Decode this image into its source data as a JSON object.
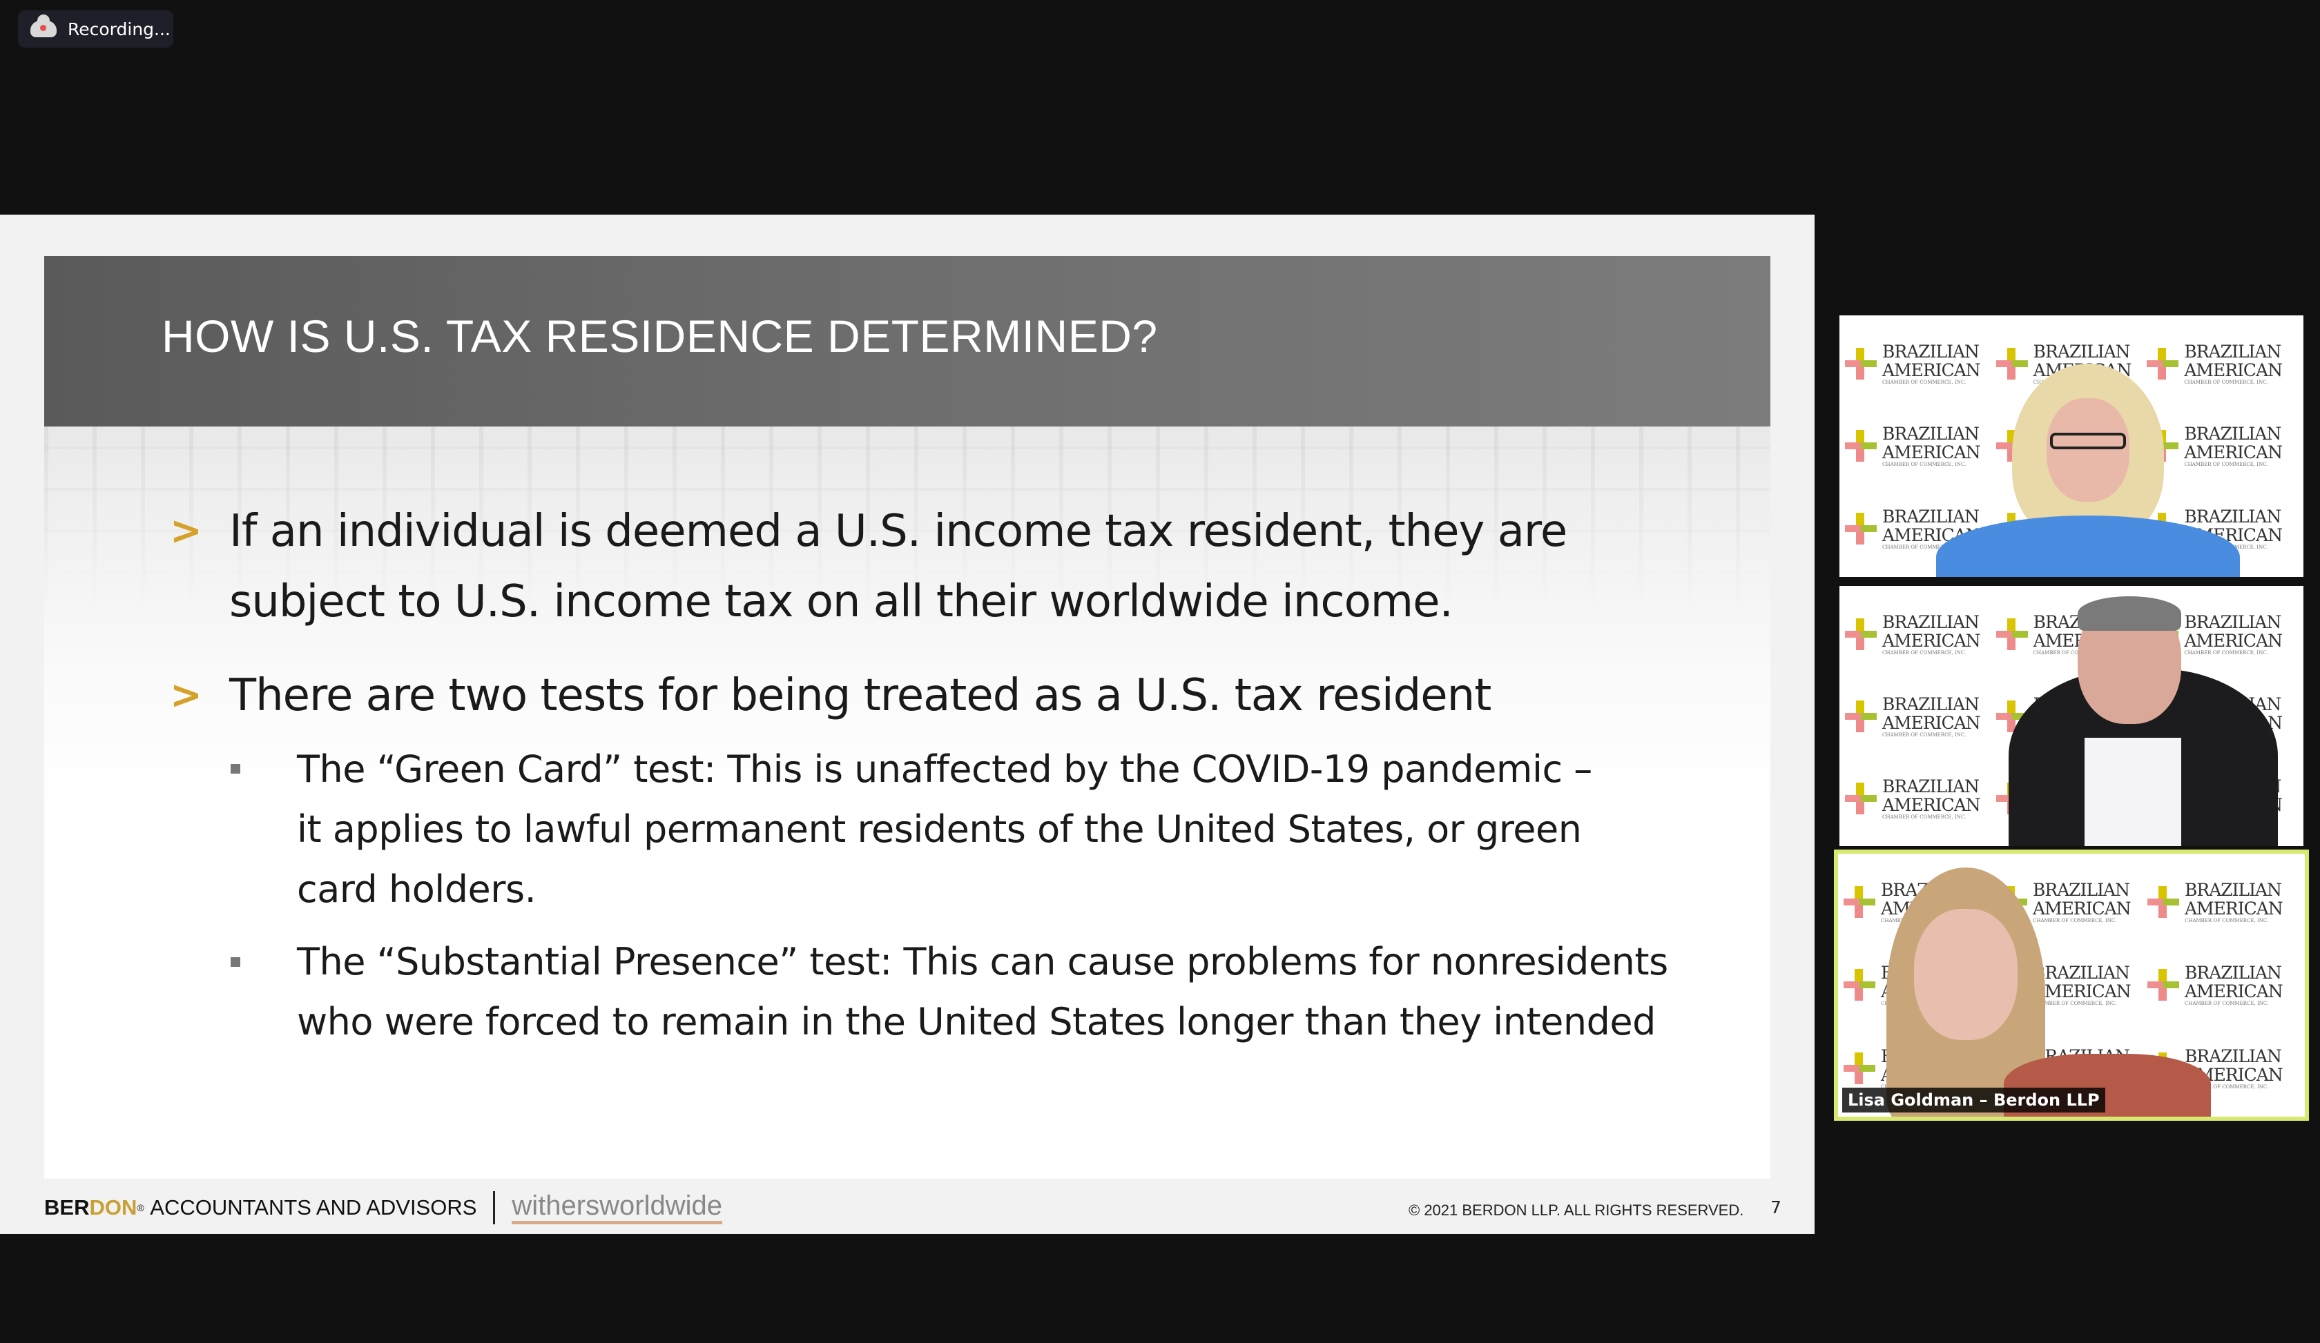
{
  "recording": {
    "label": "Recording...",
    "icon": "cloud-record-icon"
  },
  "slide": {
    "title": "HOW IS U.S. TAX RESIDENCE DETERMINED?",
    "bullets": [
      {
        "lines": [
          "If an individual is deemed a U.S. income tax resident, they are",
          "subject to U.S. income tax on all their worldwide income."
        ]
      },
      {
        "lines": [
          "There are two tests for being treated as a U.S. tax resident"
        ]
      }
    ],
    "sub_bullets": [
      {
        "lines": [
          "The “Green Card” test: This is unaffected by the COVID-19 pandemic –",
          "it applies to lawful permanent residents of the United States, or green",
          "card holders."
        ]
      },
      {
        "lines": [
          "The “Substantial Presence” test: This can cause problems for nonresidents",
          "who were forced to remain in the United States longer than they intended"
        ]
      }
    ],
    "footer": {
      "brand_a": "BER",
      "brand_b": "DON",
      "brand_reg": "®",
      "tagline": "ACCOUNTANTS AND ADVISORS",
      "partner": "withersworldwide",
      "copyright": "© 2021 BERDON LLP. ALL RIGHTS RESERVED.",
      "page": "7"
    },
    "accent": "#d4a12a"
  },
  "participants": [
    {
      "name": "",
      "active": false
    },
    {
      "name": "",
      "active": false
    },
    {
      "name": "Lisa Goldman – Berdon LLP",
      "active": true
    }
  ],
  "backdrop": {
    "line1": "BRAZILIAN",
    "line2": "AMERICAN",
    "line3": "CHAMBER OF COMMERCE, INC."
  },
  "colors": {
    "active_speaker_border": "#d8e870"
  }
}
